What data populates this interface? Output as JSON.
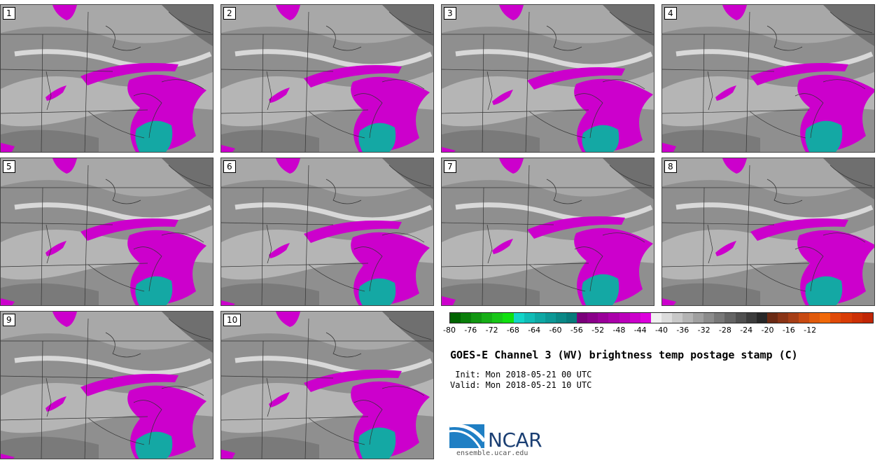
{
  "panels": [
    {
      "label": "1"
    },
    {
      "label": "2"
    },
    {
      "label": "3"
    },
    {
      "label": "4"
    },
    {
      "label": "5"
    },
    {
      "label": "6"
    },
    {
      "label": "7"
    },
    {
      "label": "8"
    },
    {
      "label": "9"
    },
    {
      "label": "10"
    }
  ],
  "colorbar": {
    "colors": [
      "#006400",
      "#0a7f0a",
      "#119611",
      "#16ae16",
      "#18c618",
      "#10e010",
      "#12d4c8",
      "#10bcb6",
      "#0ea8a4",
      "#0c9896",
      "#0a8886",
      "#087a7a",
      "#7a007a",
      "#8a008a",
      "#9a009a",
      "#aa00aa",
      "#bb00bb",
      "#cc00cc",
      "#dd00dd",
      "#f0f0f0",
      "#dcdcdc",
      "#c8c8c8",
      "#b4b4b4",
      "#a0a0a0",
      "#8c8c8c",
      "#787878",
      "#646464",
      "#505050",
      "#3c3c3c",
      "#282828",
      "#6b2a14",
      "#8a3416",
      "#a63e16",
      "#c84a12",
      "#e05a0c",
      "#f06808",
      "#e04a08",
      "#d83c06",
      "#cc3006",
      "#c02606"
    ],
    "tick_labels": [
      "-80",
      "-76",
      "-72",
      "-68",
      "-64",
      "-60",
      "-56",
      "-52",
      "-48",
      "-44",
      "-40",
      "-36",
      "-32",
      "-28",
      "-24",
      "-20",
      "-16",
      "-12"
    ]
  },
  "title": "GOES-E Channel 3 (WV) brightness temp postage stamp (C)",
  "init": " Init: Mon 2018-05-21 00 UTC",
  "valid": "Valid: Mon 2018-05-21 10 UTC",
  "logo": {
    "text": "NCAR",
    "url": "ensemble.ucar.edu"
  }
}
